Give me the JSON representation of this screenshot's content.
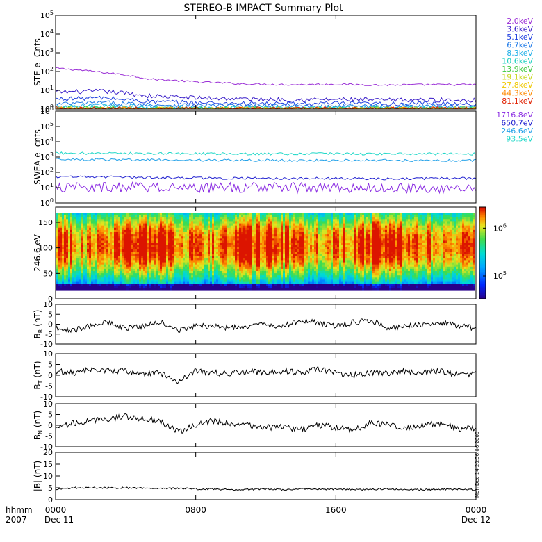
{
  "title": "STEREO-B IMPACT Summary Plot",
  "footer": {
    "time_label": "hhmm",
    "year_label": "2007",
    "start_date": "Dec 11",
    "end_date": "Dec 12",
    "timestamp": "Mon Dec 14 20:36:06 2009"
  },
  "chart_data": [
    {
      "id": "ste",
      "type": "line",
      "ylabel": "STE e- Cnts",
      "yscale": "log",
      "ylim": [
        1,
        100000
      ],
      "y_ticks": [
        "10^0",
        "10^1",
        "10^2",
        "10^3",
        "10^4",
        "10^5"
      ],
      "x_ticks": [
        "0000",
        "0800",
        "1600",
        "0000"
      ],
      "series": [
        {
          "name": "2.0keV",
          "color": "#9a2ed6",
          "values": [
            150,
            90,
            40,
            28,
            22,
            20,
            21,
            19,
            20,
            20
          ]
        },
        {
          "name": "3.6keV",
          "color": "#3a1ec9",
          "values": [
            8,
            9,
            5,
            4,
            3.5,
            3.2,
            3.3,
            3,
            3.1,
            3
          ]
        },
        {
          "name": "5.1keV",
          "color": "#1f3fe0",
          "values": [
            3.5,
            4,
            2.5,
            2.2,
            2,
            1.9,
            2,
            1.9,
            2,
            1.9
          ]
        },
        {
          "name": "6.7keV",
          "color": "#1f7ae8",
          "values": [
            1.8,
            2.2,
            1.7,
            1.6,
            1.5,
            1.5,
            1.5,
            1.4,
            1.5,
            1.5
          ]
        },
        {
          "name": "8.3keV",
          "color": "#20b0e8",
          "values": [
            1.4,
            1.6,
            1.3,
            1.2,
            1.2,
            1.2,
            1.2,
            1.2,
            1.2,
            1.2
          ]
        },
        {
          "name": "10.6keV",
          "color": "#20d0c0",
          "values": [
            1.2,
            1.3,
            1.1,
            1.1,
            1.1,
            1.1,
            1.1,
            1.1,
            1.1,
            1.1
          ]
        },
        {
          "name": "13.9keV",
          "color": "#3cc83c",
          "values": [
            1.1,
            1.1,
            1,
            1,
            1,
            1,
            1,
            1,
            1,
            1
          ]
        },
        {
          "name": "19.1keV",
          "color": "#c8d820",
          "values": [
            1,
            1,
            1,
            1,
            1,
            1,
            1,
            1,
            1,
            1
          ]
        },
        {
          "name": "27.8keV",
          "color": "#f0c800",
          "values": [
            1,
            1,
            1,
            1,
            1,
            1,
            1,
            1,
            1,
            1
          ]
        },
        {
          "name": "44.3keV",
          "color": "#ff8a00",
          "values": [
            1,
            1,
            1,
            1,
            1,
            1,
            1,
            1,
            1,
            1
          ]
        },
        {
          "name": "81.1keV",
          "color": "#e02000",
          "values": [
            1,
            1,
            1,
            1,
            1,
            1,
            1,
            1,
            1,
            1
          ]
        }
      ]
    },
    {
      "id": "swea",
      "type": "line",
      "ylabel": "SWEA e- cnts",
      "yscale": "log",
      "ylim": [
        1,
        1000000
      ],
      "y_ticks": [
        "10^0",
        "10^1",
        "10^2",
        "10^3",
        "10^4",
        "10^5",
        "10^6"
      ],
      "x_ticks": [
        "0000",
        "0800",
        "1600",
        "0000"
      ],
      "series": [
        {
          "name": "1716.8eV",
          "color": "#8a2be2",
          "values": [
            10,
            10,
            10,
            10,
            10,
            10,
            10,
            10,
            10,
            10
          ]
        },
        {
          "name": "650.7eV",
          "color": "#2020d0",
          "values": [
            50,
            50,
            45,
            42,
            40,
            40,
            40,
            38,
            40,
            40
          ]
        },
        {
          "name": "246.6eV",
          "color": "#20a0e8",
          "values": [
            700,
            680,
            650,
            640,
            620,
            600,
            620,
            600,
            610,
            600
          ]
        },
        {
          "name": "93.5eV",
          "color": "#20d8c8",
          "values": [
            1800,
            1750,
            1700,
            1650,
            1600,
            1600,
            1650,
            1550,
            1600,
            1600
          ]
        }
      ]
    },
    {
      "id": "pad",
      "type": "heatmap",
      "ylabel": "246.6 eV",
      "ylim": [
        0,
        180
      ],
      "y_ticks": [
        0,
        50,
        100,
        150
      ],
      "x_ticks": [
        "0000",
        "0800",
        "1600",
        "0000"
      ],
      "colorbar_scale": "log",
      "colorbar_ticks": [
        "10^5",
        "10^6"
      ]
    },
    {
      "id": "br",
      "type": "line",
      "ylabel": "B_R (nT)",
      "ylim": [
        -10,
        10
      ],
      "y_ticks": [
        -10,
        -5,
        0,
        5,
        10
      ],
      "x_ticks": [
        "0000",
        "0800",
        "1600",
        "0000"
      ],
      "series": [
        {
          "color": "#000000",
          "values": [
            -2,
            -3,
            -1,
            1,
            -2,
            -1,
            1,
            -3,
            -1,
            -1,
            -2,
            -1,
            0,
            -1,
            2,
            1,
            -1,
            1,
            2,
            -2,
            -1,
            0,
            1,
            -1,
            -2
          ]
        }
      ]
    },
    {
      "id": "bt",
      "type": "line",
      "ylabel": "B_T (nT)",
      "ylim": [
        -10,
        10
      ],
      "y_ticks": [
        -10,
        -5,
        0,
        5,
        10
      ],
      "x_ticks": [
        "0000",
        "0800",
        "1600",
        "0000"
      ],
      "series": [
        {
          "color": "#000000",
          "values": [
            2,
            1,
            3,
            2,
            2,
            1,
            1,
            -3,
            2,
            1,
            1,
            2,
            1,
            2,
            1,
            3,
            1,
            0,
            1,
            1,
            2,
            1,
            2,
            0,
            1
          ]
        }
      ]
    },
    {
      "id": "bn",
      "type": "line",
      "ylabel": "B_N (nT)",
      "ylim": [
        -10,
        10
      ],
      "y_ticks": [
        -10,
        -5,
        0,
        5,
        10
      ],
      "x_ticks": [
        "0000",
        "0800",
        "1600",
        "0000"
      ],
      "series": [
        {
          "color": "#000000",
          "values": [
            -1,
            1,
            2,
            3,
            4,
            3,
            2,
            -3,
            0,
            2,
            1,
            0,
            -1,
            -1,
            -2,
            0,
            -1,
            -2,
            1,
            0,
            -1,
            0,
            1,
            -2,
            -1
          ]
        }
      ]
    },
    {
      "id": "bmag",
      "type": "line",
      "ylabel": "|B| (nT)",
      "ylim": [
        0,
        20
      ],
      "y_ticks": [
        0,
        5,
        10,
        15,
        20
      ],
      "x_ticks": [
        "0000",
        "0800",
        "1600",
        "0000"
      ],
      "series": [
        {
          "color": "#000000",
          "values": [
            4.5,
            5,
            5,
            5,
            5,
            4.8,
            4.6,
            4.8,
            4.5,
            4.5,
            4.2,
            4.3,
            4.5,
            4.2,
            4.5,
            4.3,
            4.5,
            4.3,
            4.4,
            4.5,
            4.3,
            4.2,
            4.4,
            4.3,
            4.2
          ]
        }
      ]
    }
  ]
}
